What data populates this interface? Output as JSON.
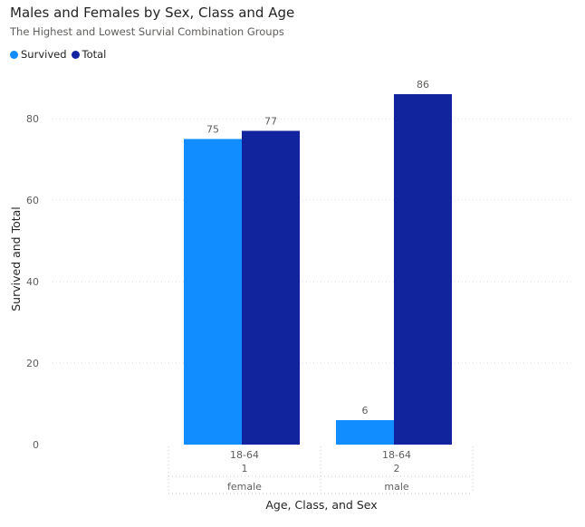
{
  "title": "Males and Females by Sex, Class and Age",
  "subtitle": "The Highest and Lowest Survial Combination Groups",
  "legend": [
    {
      "name": "Survived",
      "color": "#118DFF"
    },
    {
      "name": "Total",
      "color": "#12239E"
    }
  ],
  "chart_data": {
    "type": "bar",
    "title": "Males and Females by Sex, Class and Age",
    "subtitle": "The Highest and Lowest Survial Combination Groups",
    "xlabel": "Age, Class, and Sex",
    "ylabel": "Survived and Total",
    "ylim": [
      0,
      90
    ],
    "yticks": [
      0,
      20,
      40,
      60,
      80
    ],
    "grid": true,
    "legend_position": "top-left",
    "categories": [
      {
        "age": "18-64",
        "class": "1",
        "sex": "female"
      },
      {
        "age": "18-64",
        "class": "2",
        "sex": "male"
      }
    ],
    "series": [
      {
        "name": "Survived",
        "color": "#118DFF",
        "values": [
          75,
          6
        ]
      },
      {
        "name": "Total",
        "color": "#12239E",
        "values": [
          77,
          86
        ]
      }
    ]
  }
}
